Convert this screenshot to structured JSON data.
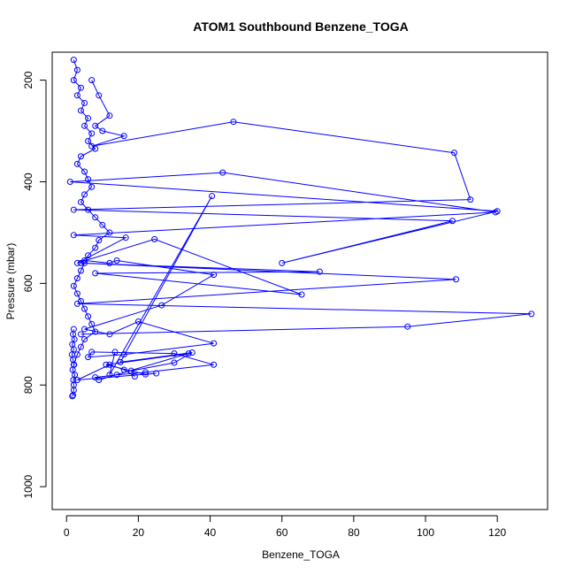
{
  "chart_data": {
    "type": "line",
    "title": "ATOM1 Southbound Benzene_TOGA",
    "xlabel": "Benzene_TOGA",
    "ylabel": "Pressure (mbar)",
    "xlim": [
      -4,
      134
    ],
    "ylim": [
      1045,
      145
    ],
    "y_inverted": true,
    "x_ticks": [
      0,
      20,
      40,
      60,
      80,
      100,
      120
    ],
    "y_ticks": [
      200,
      400,
      600,
      800,
      1000
    ],
    "grid": false,
    "legend": "none",
    "marker": "open-circle",
    "series_color": "#0000ff",
    "series": [
      {
        "x": [
          2,
          3,
          2,
          4,
          3,
          5,
          4,
          6,
          5,
          7,
          6,
          8,
          4,
          3,
          5,
          6,
          7,
          5,
          4,
          6,
          8,
          10,
          12,
          9,
          8,
          6,
          5,
          4,
          3,
          2,
          3,
          4,
          5,
          6,
          7,
          8,
          5,
          4,
          3,
          2
        ],
        "y": [
          160,
          180,
          200,
          215,
          230,
          245,
          260,
          275,
          290,
          305,
          320,
          335,
          350,
          365,
          380,
          395,
          410,
          425,
          440,
          455,
          470,
          485,
          500,
          515,
          530,
          545,
          560,
          575,
          590,
          605,
          620,
          635,
          650,
          665,
          680,
          695,
          710,
          725,
          740,
          760
        ]
      },
      {
        "x": [
          7,
          9,
          12,
          8,
          10,
          16,
          7,
          46.5,
          108,
          112.5,
          2,
          107.5,
          60,
          120,
          1,
          43.5,
          119.5,
          2,
          16.5,
          3,
          24.5,
          65.5,
          8,
          70.5,
          4,
          108.5,
          3,
          129.5,
          95,
          4
        ],
        "y": [
          200,
          230,
          270,
          290,
          300,
          310,
          330,
          282,
          343,
          435,
          455,
          477,
          560,
          458,
          400,
          382,
          460,
          505,
          510,
          560,
          513,
          622,
          580,
          577,
          560,
          592,
          640,
          660,
          685,
          700
        ]
      },
      {
        "x": [
          5,
          12,
          14,
          41,
          26.5,
          5,
          12,
          20,
          41,
          16,
          6,
          7,
          30,
          41,
          22,
          14,
          8,
          9,
          34,
          11,
          22,
          25,
          3,
          12,
          16,
          19,
          18,
          30,
          35,
          15,
          40.5,
          12,
          13.5
        ],
        "y": [
          555,
          560,
          555,
          583,
          643,
          690,
          700,
          675,
          718,
          740,
          745,
          735,
          738,
          760,
          775,
          780,
          785,
          790,
          738,
          760,
          779,
          777,
          790,
          760,
          770,
          783,
          772,
          756,
          736,
          755,
          428,
          780,
          735
        ]
      },
      {
        "x": [
          2,
          1.8,
          2.2,
          1.6,
          2,
          1.5,
          1.8,
          2.1,
          1.7,
          2.3,
          1.9,
          2,
          2,
          1.8,
          1.6
        ],
        "y": [
          690,
          700,
          710,
          720,
          730,
          740,
          750,
          760,
          770,
          780,
          790,
          800,
          810,
          820,
          822
        ]
      }
    ]
  }
}
